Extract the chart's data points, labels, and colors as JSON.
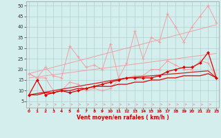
{
  "x": [
    0,
    1,
    2,
    3,
    4,
    5,
    6,
    7,
    8,
    9,
    10,
    11,
    12,
    13,
    14,
    15,
    16,
    17,
    18,
    19,
    20,
    21,
    22,
    23
  ],
  "line_gust_jagged": [
    18,
    16,
    21,
    17,
    16,
    31,
    26,
    21,
    22,
    20,
    32,
    16,
    23,
    38,
    25,
    35,
    33,
    46,
    40,
    33,
    40,
    45,
    50,
    42
  ],
  "line_mean_jagged": [
    18,
    16,
    16,
    10,
    10,
    14,
    13,
    10,
    11,
    10,
    11,
    15,
    16,
    17,
    17,
    20,
    20,
    24,
    22,
    20,
    20,
    24,
    23,
    16
  ],
  "line_gust_trend": [
    18,
    19,
    20,
    21,
    22,
    23,
    24,
    25,
    26,
    27,
    28,
    29,
    30,
    31,
    32,
    33,
    34,
    35,
    36,
    37,
    38,
    39,
    40,
    41
  ],
  "line_mean_trend": [
    16,
    16.5,
    17,
    17.5,
    18,
    18.5,
    19,
    19.5,
    20,
    20.5,
    21,
    21.5,
    22,
    22.5,
    23,
    23.5,
    24,
    24.5,
    25,
    25.5,
    26,
    26.5,
    27,
    27.5
  ],
  "line_dark1": [
    8,
    15,
    8,
    9,
    10,
    9,
    10,
    11,
    12,
    13,
    14,
    15,
    16,
    16,
    16,
    16,
    17,
    19,
    20,
    21,
    21,
    23,
    28,
    16
  ],
  "line_dark2_trend": [
    8,
    8.7,
    9.3,
    10,
    10.7,
    11.3,
    12,
    12.7,
    13.3,
    14,
    14.7,
    15.3,
    16,
    16.3,
    16.7,
    17,
    17.3,
    17.7,
    18,
    18.3,
    18.7,
    19,
    19.3,
    16
  ],
  "line_dark3": [
    8,
    8,
    9,
    9,
    10,
    10,
    11,
    11,
    12,
    12,
    12,
    13,
    13,
    14,
    14,
    15,
    15,
    16,
    16,
    17,
    17,
    17,
    18,
    16
  ],
  "color_pink": "#f0a0a0",
  "color_lightpink": "#f5b8b8",
  "color_dark": "#dd0000",
  "color_medium": "#cc2222",
  "bg_color": "#d4eeee",
  "grid_color": "#b0d0d0",
  "xlabel": "Vent moyen/en rafales ( km/h )",
  "xlim": [
    -0.3,
    23.3
  ],
  "ylim": [
    2,
    52
  ],
  "yticks": [
    5,
    10,
    15,
    20,
    25,
    30,
    35,
    40,
    45,
    50
  ],
  "xticks": [
    0,
    1,
    2,
    3,
    4,
    5,
    6,
    7,
    8,
    9,
    10,
    11,
    12,
    13,
    14,
    15,
    16,
    17,
    18,
    19,
    20,
    21,
    22,
    23
  ]
}
